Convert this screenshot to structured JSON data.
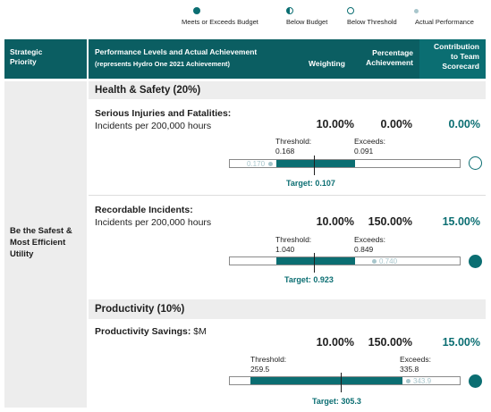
{
  "legend": {
    "meets": "Meets or Exceeds Budget",
    "below_budget": "Below Budget",
    "below_threshold": "Below Threshold",
    "actual": "Actual Performance"
  },
  "colors": {
    "teal": "#0b6e72",
    "header": "#0b5e62",
    "light": "#a8c6cc"
  },
  "header": {
    "strategic": "Strategic\nPriority",
    "performance": "Performance Levels and Actual Achievement",
    "performance_sub": "(represents Hydro One 2021 Achievement)",
    "weighting": "Weighting",
    "percentage": "Percentage\nAchievement",
    "contribution": "Contribution\nto Team\nScorecard"
  },
  "priority": "Be the Safest &\nMost Efficient\nUtility",
  "sections": {
    "health": "Health & Safety (20%)",
    "productivity": "Productivity (10%)"
  },
  "metrics": [
    {
      "name": "Serious Injuries and Fatalities:",
      "unit": "Incidents per 200,000 hours",
      "weighting": "10.00%",
      "achievement": "0.00%",
      "contribution": "0.00%",
      "threshold_label": "Threshold:",
      "threshold": "0.168",
      "exceeds_label": "Exceeds:",
      "exceeds": "0.091",
      "actual": "0.170",
      "target": "Target: 0.107",
      "status": "below-threshold"
    },
    {
      "name": "Recordable Incidents:",
      "unit": "Incidents per 200,000 hours",
      "weighting": "10.00%",
      "achievement": "150.00%",
      "contribution": "15.00%",
      "threshold_label": "Threshold:",
      "threshold": "1.040",
      "exceeds_label": "Exceeds:",
      "exceeds": "0.849",
      "actual": "0.740",
      "target": "Target: 0.923",
      "status": "meets"
    },
    {
      "name": "Productivity Savings:",
      "unit": "$M",
      "weighting": "10.00%",
      "achievement": "150.00%",
      "contribution": "15.00%",
      "threshold_label": "Threshold:",
      "threshold": "259.5",
      "exceeds_label": "Exceeds:",
      "exceeds": "335.8",
      "actual": "343.9",
      "target": "Target: 305.3",
      "status": "meets"
    }
  ]
}
